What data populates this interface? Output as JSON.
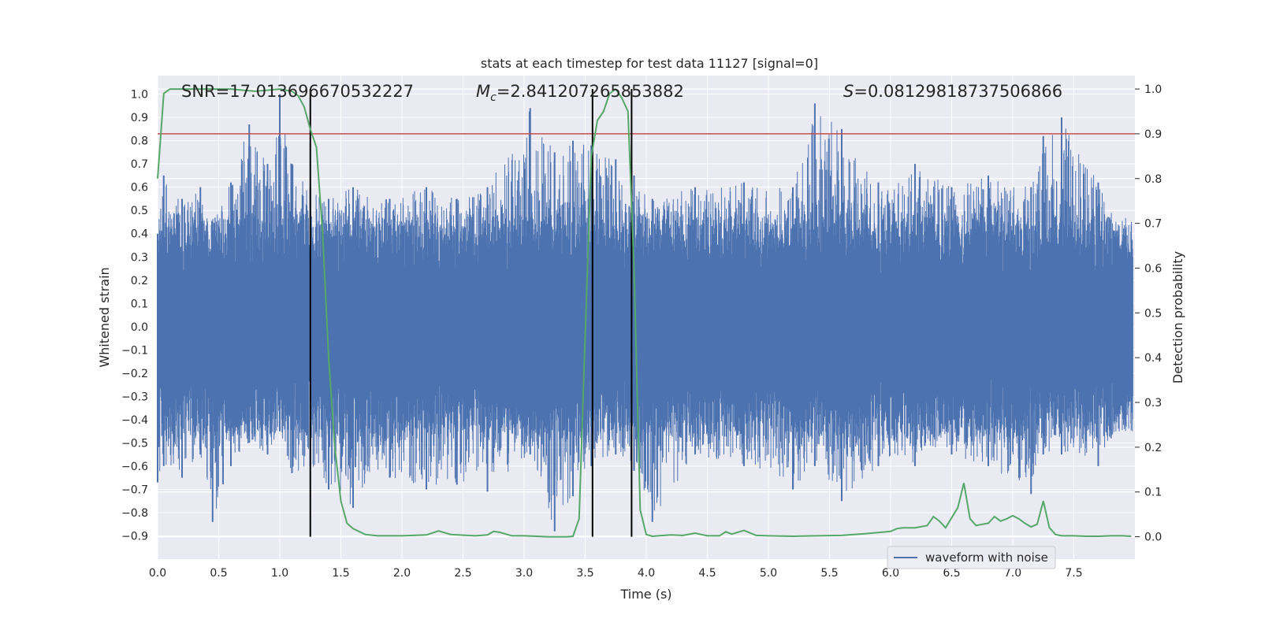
{
  "chart_data": {
    "type": "line",
    "title": "stats at each timestep for test data 11127 [signal=0]",
    "xlabel": "Time (s)",
    "ylabel": "Whitened strain",
    "ylabel_right": "Detection probability",
    "xlim": [
      0.0,
      8.0
    ],
    "ylim": [
      -1.0,
      1.08
    ],
    "ylim_right": [
      -0.05,
      1.03
    ],
    "x_ticks": [
      "0.0",
      "0.5",
      "1.0",
      "1.5",
      "2.0",
      "2.5",
      "3.0",
      "3.5",
      "4.0",
      "4.5",
      "5.0",
      "5.5",
      "6.0",
      "6.5",
      "7.0",
      "7.5"
    ],
    "y_ticks": [
      "-0.9",
      "-0.8",
      "-0.7",
      "-0.6",
      "-0.5",
      "-0.4",
      "-0.3",
      "-0.2",
      "-0.1",
      "0.0",
      "0.1",
      "0.2",
      "0.3",
      "0.4",
      "0.5",
      "0.6",
      "0.7",
      "0.8",
      "0.9",
      "1.0"
    ],
    "y_ticks_right": [
      "0.0",
      "0.1",
      "0.2",
      "0.3",
      "0.4",
      "0.5",
      "0.6",
      "0.7",
      "0.8",
      "0.9",
      "1.0"
    ],
    "grid": true,
    "legend_placement": "lower-right",
    "annotations": {
      "snr": "SNR=17.013696670532227",
      "mc_symbol": "M",
      "mc_sub": "c",
      "mc_value": "=2.841207265853882",
      "s_symbol": "S",
      "s_value": "=0.08129818737506866"
    },
    "threshold_right": 0.9,
    "vertical_lines_x": [
      1.25,
      3.56,
      3.88
    ],
    "series": [
      {
        "name": "waveform with noise",
        "color": "#4c72b0",
        "envelope_peaks": [
          [
            0.0,
            0.4,
            -0.67
          ],
          [
            0.05,
            0.65,
            -0.6
          ],
          [
            0.2,
            0.55,
            -0.65
          ],
          [
            0.35,
            0.6,
            -0.55
          ],
          [
            0.45,
            0.45,
            -0.84
          ],
          [
            0.6,
            0.62,
            -0.6
          ],
          [
            0.75,
            0.87,
            -0.5
          ],
          [
            0.9,
            0.7,
            -0.55
          ],
          [
            1.0,
            1.0,
            -0.45
          ],
          [
            1.1,
            0.7,
            -0.63
          ],
          [
            1.25,
            0.6,
            -0.6
          ],
          [
            1.4,
            0.55,
            -0.7
          ],
          [
            1.6,
            0.6,
            -0.78
          ],
          [
            1.9,
            0.55,
            -0.65
          ],
          [
            2.2,
            0.6,
            -0.7
          ],
          [
            2.45,
            0.55,
            -0.68
          ],
          [
            2.7,
            0.6,
            -0.71
          ],
          [
            3.05,
            0.94,
            -0.55
          ],
          [
            3.25,
            0.75,
            -0.88
          ],
          [
            3.4,
            0.8,
            -0.73
          ],
          [
            3.55,
            0.78,
            -0.6
          ],
          [
            3.75,
            0.72,
            -0.55
          ],
          [
            3.9,
            0.65,
            -0.62
          ],
          [
            4.05,
            0.55,
            -0.84
          ],
          [
            4.4,
            0.6,
            -0.55
          ],
          [
            4.8,
            0.62,
            -0.6
          ],
          [
            5.2,
            0.6,
            -0.7
          ],
          [
            5.38,
            0.96,
            -0.6
          ],
          [
            5.6,
            0.85,
            -0.75
          ],
          [
            5.9,
            0.62,
            -0.6
          ],
          [
            6.2,
            0.7,
            -0.6
          ],
          [
            6.5,
            0.6,
            -0.55
          ],
          [
            6.8,
            0.65,
            -0.6
          ],
          [
            7.15,
            0.6,
            -0.72
          ],
          [
            7.25,
            0.82,
            -0.55
          ],
          [
            7.4,
            0.9,
            -0.55
          ],
          [
            7.7,
            0.62,
            -0.6
          ],
          [
            7.98,
            0.3,
            -0.3
          ]
        ]
      },
      {
        "name": "",
        "axis": "right",
        "color": "#55a868",
        "x": [
          0.0,
          0.05,
          0.1,
          0.2,
          0.4,
          0.6,
          0.8,
          1.0,
          1.1,
          1.15,
          1.2,
          1.25,
          1.3,
          1.35,
          1.4,
          1.45,
          1.5,
          1.55,
          1.6,
          1.7,
          1.8,
          1.9,
          2.0,
          2.2,
          2.3,
          2.4,
          2.6,
          2.7,
          2.75,
          2.8,
          2.9,
          3.0,
          3.1,
          3.2,
          3.3,
          3.35,
          3.4,
          3.45,
          3.5,
          3.55,
          3.6,
          3.65,
          3.7,
          3.75,
          3.8,
          3.85,
          3.9,
          3.95,
          4.0,
          4.05,
          4.1,
          4.2,
          4.3,
          4.4,
          4.5,
          4.6,
          4.65,
          4.7,
          4.8,
          4.9,
          5.0,
          5.2,
          5.4,
          5.6,
          5.8,
          6.0,
          6.05,
          6.1,
          6.2,
          6.3,
          6.35,
          6.4,
          6.45,
          6.55,
          6.6,
          6.65,
          6.7,
          6.75,
          6.8,
          6.85,
          6.9,
          6.95,
          7.0,
          7.05,
          7.1,
          7.15,
          7.2,
          7.25,
          7.3,
          7.35,
          7.4,
          7.5,
          7.6,
          7.7,
          7.8,
          7.9,
          7.97
        ],
        "y": [
          0.8,
          0.99,
          1.0,
          1.0,
          1.0,
          1.0,
          0.995,
          1.0,
          0.995,
          0.985,
          0.96,
          0.91,
          0.87,
          0.68,
          0.4,
          0.2,
          0.08,
          0.03,
          0.018,
          0.005,
          0.002,
          0.002,
          0.002,
          0.004,
          0.013,
          0.005,
          0.002,
          0.004,
          0.012,
          0.01,
          0.002,
          0.002,
          0.001,
          0.0,
          0.0,
          0.0,
          0.001,
          0.04,
          0.45,
          0.85,
          0.93,
          0.95,
          0.99,
          1.0,
          0.98,
          0.95,
          0.6,
          0.06,
          0.005,
          0.001,
          0.002,
          0.004,
          0.003,
          0.008,
          0.002,
          0.002,
          0.011,
          0.006,
          0.014,
          0.003,
          0.002,
          0.001,
          0.002,
          0.003,
          0.007,
          0.012,
          0.018,
          0.02,
          0.02,
          0.025,
          0.045,
          0.035,
          0.02,
          0.065,
          0.12,
          0.04,
          0.025,
          0.028,
          0.03,
          0.045,
          0.035,
          0.04,
          0.047,
          0.04,
          0.03,
          0.022,
          0.028,
          0.08,
          0.02,
          0.005,
          0.002,
          0.002,
          0.001,
          0.001,
          0.002,
          0.002,
          0.001
        ]
      }
    ],
    "threshold_color": "#c44e52",
    "vline_color": "#000000"
  }
}
